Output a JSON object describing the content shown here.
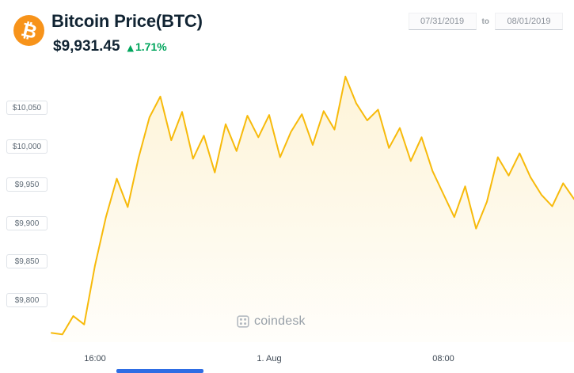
{
  "header": {
    "logo_glyph": "₿",
    "title": "Bitcoin Price(BTC)",
    "price": "$9,931.45",
    "change_arrow": "▲",
    "change": "1.71%"
  },
  "date_range": {
    "start": "07/31/2019",
    "separator": "to",
    "end": "08/01/2019"
  },
  "watermark": {
    "text": "coindesk"
  },
  "colors": {
    "accent_orange": "#f7931a",
    "change_green": "#00a55c",
    "chart_line": "#f7ba0b",
    "chart_fill_top": "rgba(247,186,11,0.16)",
    "chart_fill_bottom": "rgba(247,186,11,0.02)",
    "scrollbar_blue": "#2e6de4"
  },
  "chart_data": {
    "type": "area",
    "title": "Bitcoin Price(BTC)",
    "ylim": [
      9745,
      10100
    ],
    "x": [
      "14:00",
      "14:30",
      "15:00",
      "15:30",
      "16:00",
      "16:30",
      "17:00",
      "17:30",
      "18:00",
      "18:30",
      "19:00",
      "19:30",
      "20:00",
      "20:30",
      "21:00",
      "21:30",
      "22:00",
      "22:30",
      "23:00",
      "23:30",
      "00:00",
      "00:30",
      "01:00",
      "01:30",
      "02:00",
      "02:30",
      "03:00",
      "03:30",
      "04:00",
      "04:30",
      "05:00",
      "05:30",
      "06:00",
      "06:30",
      "07:00",
      "07:30",
      "08:00",
      "08:30",
      "09:00",
      "09:30",
      "10:00",
      "10:30",
      "11:00",
      "11:30",
      "12:00",
      "12:30",
      "13:00",
      "13:30",
      "14:00"
    ],
    "values": [
      9757,
      9755,
      9779,
      9768,
      9845,
      9908,
      9958,
      9921,
      9985,
      10038,
      10065,
      10008,
      10045,
      9984,
      10014,
      9966,
      10029,
      9994,
      10040,
      10012,
      10041,
      9986,
      10019,
      10042,
      10002,
      10046,
      10022,
      10091,
      10056,
      10034,
      10048,
      9998,
      10024,
      9981,
      10012,
      9968,
      9938,
      9908,
      9948,
      9893,
      9928,
      9986,
      9962,
      9991,
      9960,
      9937,
      9922,
      9952,
      9931.45
    ],
    "yticks": [
      {
        "value": 10050,
        "label": "$10,050"
      },
      {
        "value": 10000,
        "label": "$10,000"
      },
      {
        "value": 9950,
        "label": "$9,950"
      },
      {
        "value": 9900,
        "label": "$9,900"
      },
      {
        "value": 9850,
        "label": "$9,850"
      },
      {
        "value": 9800,
        "label": "$9,800"
      }
    ],
    "xticks": [
      {
        "index": 4,
        "label": "16:00"
      },
      {
        "index": 20,
        "label": "1. Aug"
      },
      {
        "index": 36,
        "label": "08:00"
      }
    ],
    "grid": false,
    "legend": false
  }
}
